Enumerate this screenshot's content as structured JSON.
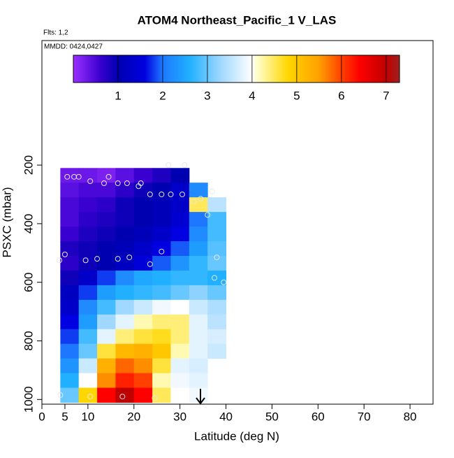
{
  "chart_data": {
    "type": "heatmap",
    "title": "ATOM4 Northeast_Pacific_1 V_LAS",
    "flights": "Flts: 1,2",
    "dates": "MMDD: 0424,0427",
    "x_label": "Latitude (deg N)",
    "y_label": "PSXC (mbar)",
    "xlim": [
      0,
      85
    ],
    "ylim": [
      1016,
      -225
    ],
    "xticks": [
      0,
      5,
      10,
      20,
      30,
      40,
      50,
      60,
      70,
      80
    ],
    "yticks": [
      200,
      400,
      600,
      800,
      1000
    ],
    "x_edges": [
      4,
      8,
      12,
      16,
      20,
      24,
      28,
      32,
      36,
      40
    ],
    "y_edges": [
      210,
      260,
      310,
      360,
      410,
      460,
      510,
      560,
      610,
      660,
      710,
      760,
      810,
      860,
      910,
      960,
      1010
    ],
    "z": [
      [
        0.3,
        0.3,
        0.2,
        0.4,
        0.6,
        0.8,
        1.0,
        null,
        null
      ],
      [
        0.4,
        0.5,
        0.5,
        0.7,
        0.9,
        1.0,
        1.3,
        2.2,
        null
      ],
      [
        0.5,
        0.6,
        0.7,
        0.9,
        1.0,
        1.1,
        1.3,
        4.5,
        3.5
      ],
      [
        0.5,
        0.7,
        0.8,
        0.9,
        1.0,
        1.1,
        1.4,
        2.0,
        2.8
      ],
      [
        0.6,
        0.8,
        0.9,
        1.0,
        1.1,
        1.3,
        1.6,
        2.2,
        2.8
      ],
      [
        0.8,
        0.9,
        1.0,
        1.1,
        1.3,
        1.6,
        1.9,
        2.4,
        2.9
      ],
      [
        0.7,
        0.9,
        1.0,
        1.2,
        1.5,
        1.9,
        2.3,
        2.7,
        3.0
      ],
      [
        0.9,
        1.3,
        1.8,
        2.2,
        2.5,
        2.6,
        2.7,
        2.7,
        2.6
      ],
      [
        1.2,
        1.8,
        2.4,
        2.6,
        2.7,
        2.8,
        3.0,
        3.2,
        3.0
      ],
      [
        1.3,
        2.2,
        2.8,
        3.3,
        3.6,
        3.9,
        4.0,
        3.6,
        3.4
      ],
      [
        1.6,
        2.4,
        3.3,
        3.8,
        4.2,
        4.4,
        4.4,
        3.8,
        3.5
      ],
      [
        1.8,
        2.8,
        3.8,
        4.4,
        4.6,
        4.7,
        4.4,
        3.8,
        3.7
      ],
      [
        2.0,
        3.0,
        4.6,
        5.2,
        5.3,
        5.0,
        4.2,
        3.8,
        3.6
      ],
      [
        2.3,
        3.6,
        5.3,
        5.8,
        5.6,
        4.6,
        3.8,
        3.7,
        null
      ],
      [
        2.6,
        4.0,
        5.6,
        6.2,
        6.0,
        4.2,
        3.9,
        3.8,
        null
      ],
      [
        3.0,
        4.8,
        6.4,
        7.0,
        6.4,
        4.5,
        4.0,
        3.9,
        null
      ]
    ],
    "points": {
      "x": [
        5.5,
        7,
        8,
        10.5,
        13.5,
        14.5,
        16.5,
        18.5,
        21,
        21.5,
        23.5,
        26,
        28,
        30.5,
        33,
        34.5,
        36,
        37,
        27.5,
        31,
        5,
        3.8,
        9.5,
        12,
        16.5,
        19,
        23.5,
        26,
        38,
        37.5,
        39.5,
        4,
        10.5,
        17.5,
        24.5
      ],
      "y": [
        240,
        240,
        240,
        255,
        262,
        240,
        262,
        262,
        272,
        262,
        300,
        300,
        300,
        300,
        325,
        315,
        370,
        290,
        200,
        200,
        505,
        525,
        525,
        520,
        520,
        515,
        538,
        495,
        515,
        585,
        600,
        985,
        990,
        990,
        995
      ],
      "color": "#e8e8e8"
    },
    "colorbar": {
      "lim": [
        0,
        7.3
      ],
      "ticks": [
        1,
        2,
        3,
        4,
        5,
        6,
        7
      ],
      "colorscale": [
        [
          0,
          "#9b30ff"
        ],
        [
          0.6,
          "#3a00d0"
        ],
        [
          1,
          "#0000b0"
        ],
        [
          1.6,
          "#0000e0"
        ],
        [
          2,
          "#1e78ff"
        ],
        [
          2.6,
          "#20b0ff"
        ],
        [
          3.3,
          "#a0d8ff"
        ],
        [
          4,
          "#ffffff"
        ],
        [
          4.1,
          "#ffffd0"
        ],
        [
          4.8,
          "#ffd700"
        ],
        [
          5.5,
          "#ffa000"
        ],
        [
          6,
          "#ff4000"
        ],
        [
          6.4,
          "#ff0000"
        ],
        [
          7,
          "#c00000"
        ],
        [
          7.3,
          "#a02020"
        ]
      ]
    }
  }
}
